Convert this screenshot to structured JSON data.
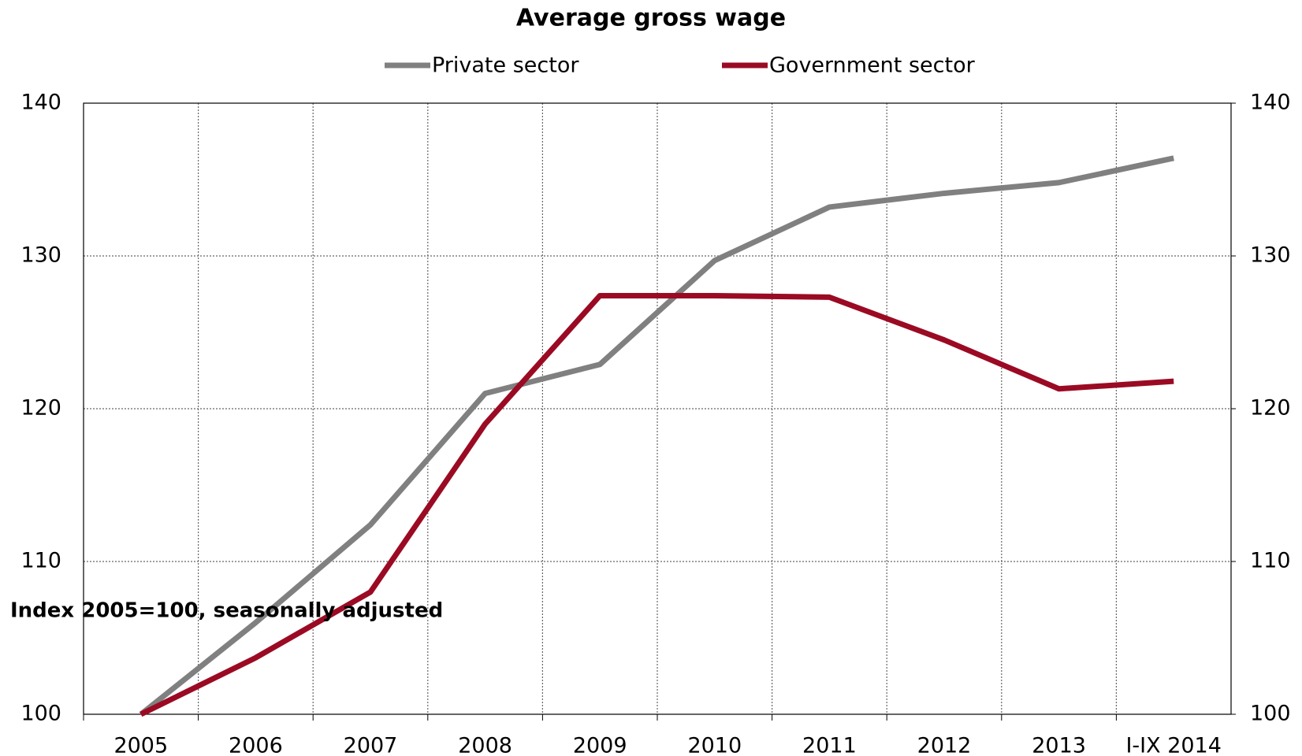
{
  "chart_data": {
    "type": "line",
    "title": "Average gross wage",
    "annotation": "Index 2005=100, seasonally  adjusted",
    "categories": [
      "2005",
      "2006",
      "2007",
      "2008",
      "2009",
      "2010",
      "2011",
      "2012",
      "2013",
      "I-IX 2014"
    ],
    "series": [
      {
        "name": "Private sector",
        "color": "#808080",
        "values": [
          100,
          106,
          112.4,
          121,
          122.9,
          129.7,
          133.2,
          134.1,
          134.8,
          136.4
        ]
      },
      {
        "name": "Government sector",
        "color": "#9b0a23",
        "values": [
          100,
          103.7,
          108,
          119,
          127.4,
          127.4,
          127.3,
          124.5,
          121.3,
          121.8
        ]
      }
    ],
    "ylim": [
      100,
      140
    ],
    "yticks": [
      100,
      110,
      120,
      130,
      140
    ],
    "y2lim": [
      100,
      140
    ],
    "y2ticks": [
      100,
      110,
      120,
      130,
      140
    ],
    "grid": true,
    "legend": "top"
  }
}
